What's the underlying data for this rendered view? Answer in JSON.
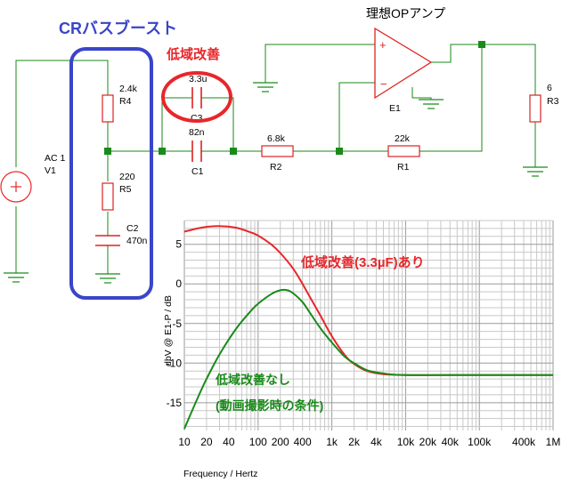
{
  "schematic": {
    "bass_boost_title": "CRバスブースト",
    "low_freq_improve_title": "低域改善",
    "opamp_title": "理想OPアンプ",
    "source": {
      "name": "AC 1",
      "ref": "V1"
    },
    "r4": {
      "value": "2.4k",
      "ref": "R4"
    },
    "r5": {
      "value": "220",
      "ref": "R5"
    },
    "c2": {
      "ref": "C2",
      "value": "470n"
    },
    "c3": {
      "value": "3.3u",
      "ref": "C3"
    },
    "c1": {
      "value": "82n",
      "ref": "C1"
    },
    "r2": {
      "value": "6.8k",
      "ref": "R2"
    },
    "r1": {
      "value": "22k",
      "ref": "R1"
    },
    "r3": {
      "value": "6",
      "ref": "R3"
    },
    "opamp_ref": "E1"
  },
  "chart_data": {
    "type": "line",
    "x_scale": "log",
    "xlim": [
      10,
      1000000
    ],
    "ylim": [
      -18.5,
      8
    ],
    "x_ticks": [
      {
        "v": 10,
        "label": "10"
      },
      {
        "v": 20,
        "label": "20"
      },
      {
        "v": 40,
        "label": "40"
      },
      {
        "v": 100,
        "label": "100"
      },
      {
        "v": 200,
        "label": "200"
      },
      {
        "v": 400,
        "label": "400"
      },
      {
        "v": 1000,
        "label": "1k"
      },
      {
        "v": 2000,
        "label": "2k"
      },
      {
        "v": 4000,
        "label": "4k"
      },
      {
        "v": 10000,
        "label": "10k"
      },
      {
        "v": 20000,
        "label": "20k"
      },
      {
        "v": 40000,
        "label": "40k"
      },
      {
        "v": 100000,
        "label": "100k"
      },
      {
        "v": 400000,
        "label": "400k"
      },
      {
        "v": 1000000,
        "label": "1M"
      }
    ],
    "y_ticks": [
      {
        "v": 5,
        "label": "5"
      },
      {
        "v": 0,
        "label": "0"
      },
      {
        "v": -5,
        "label": "-5"
      },
      {
        "v": -10,
        "label": "-10"
      },
      {
        "v": -15,
        "label": "-15"
      }
    ],
    "xlabel": "Frequency / Hertz",
    "ylabel": "dbV @ E1-P / dB",
    "grid": true,
    "series": [
      {
        "name": "低域改善(3.3µF)あり",
        "color": "#e8262a",
        "x": [
          10,
          15,
          20,
          30,
          50,
          80,
          100,
          150,
          200,
          300,
          400,
          500,
          700,
          1000,
          1500,
          2000,
          3000,
          5000,
          10000,
          100000,
          1000000
        ],
        "y": [
          6.6,
          7.0,
          7.2,
          7.3,
          7.1,
          6.5,
          6.1,
          5.0,
          3.9,
          1.9,
          0.0,
          -1.6,
          -4.0,
          -6.6,
          -9.0,
          -10.1,
          -11.0,
          -11.4,
          -11.5,
          -11.5,
          -11.5
        ]
      },
      {
        "name": "低域改善なし\n(動画撮影時の条件)",
        "color": "#1a8a1a",
        "x": [
          10,
          15,
          20,
          30,
          50,
          80,
          100,
          150,
          200,
          250,
          300,
          400,
          500,
          700,
          1000,
          1500,
          2000,
          3000,
          5000,
          10000,
          100000,
          1000000
        ],
        "y": [
          -18.3,
          -14.5,
          -12.0,
          -8.9,
          -5.7,
          -3.4,
          -2.5,
          -1.3,
          -0.8,
          -0.8,
          -1.2,
          -2.3,
          -3.6,
          -5.6,
          -7.4,
          -9.2,
          -10.0,
          -10.9,
          -11.3,
          -11.5,
          -11.5,
          -11.5
        ]
      }
    ]
  }
}
